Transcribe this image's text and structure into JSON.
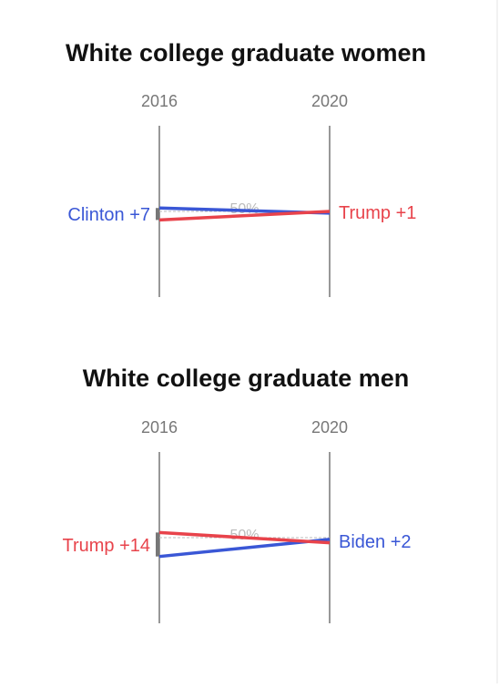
{
  "chart_data": [
    {
      "type": "slope",
      "title": "White college graduate women",
      "categories": [
        "2016",
        "2020"
      ],
      "series": [
        {
          "color": "#3a57d6",
          "values": [
            52,
            49
          ]
        },
        {
          "color": "#e8434b",
          "values": [
            45,
            50
          ]
        }
      ],
      "ylim": [
        0,
        100
      ],
      "reference_line": {
        "value": 50,
        "label": "50%"
      },
      "annotations": [
        {
          "text": "Clinton +7",
          "color": "#3a57d6"
        },
        {
          "text": "Trump +1",
          "color": "#e8434b"
        }
      ]
    },
    {
      "type": "slope",
      "title": "White college graduate men",
      "categories": [
        "2016",
        "2020"
      ],
      "series": [
        {
          "color": "#3a57d6",
          "values": [
            39,
            49
          ]
        },
        {
          "color": "#e8434b",
          "values": [
            53,
            47
          ]
        }
      ],
      "ylim": [
        0,
        100
      ],
      "reference_line": {
        "value": 50,
        "label": "50%"
      },
      "annotations": [
        {
          "text": "Trump +14",
          "color": "#e8434b"
        },
        {
          "text": "Biden +2",
          "color": "#3a57d6"
        }
      ]
    }
  ]
}
